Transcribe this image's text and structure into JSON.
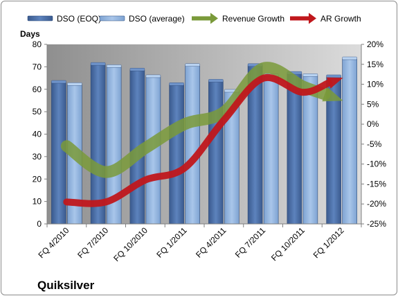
{
  "chart_data": {
    "type": "bar",
    "title": "Quiksilver",
    "ylabel": "Days",
    "ylim": [
      0,
      80
    ],
    "y2lim": [
      -25,
      20
    ],
    "yticks": [
      0,
      10,
      20,
      30,
      40,
      50,
      60,
      70,
      80
    ],
    "y2ticks": [
      "-25%",
      "-20%",
      "-15%",
      "-10%",
      "-5%",
      "0%",
      "5%",
      "10%",
      "15%",
      "20%"
    ],
    "y2tick_values": [
      -25,
      -20,
      -15,
      -10,
      -5,
      0,
      5,
      10,
      15,
      20
    ],
    "categories": [
      "FQ 4/2010",
      "FQ 7/2010",
      "FQ 10/2010",
      "FQ 1/2011",
      "FQ 4/2011",
      "FQ 7/2011",
      "FQ 10/2011",
      "FQ 1/2012"
    ],
    "legend_position": "top",
    "grid": false,
    "series": [
      {
        "name": "DSO (EOQ)",
        "kind": "bar",
        "axis": "left",
        "color": "#4a6fa8",
        "values": [
          63,
          71,
          68.5,
          62,
          63.5,
          70.5,
          67,
          65.5
        ]
      },
      {
        "name": "DSO (average)",
        "kind": "bar",
        "axis": "left",
        "color": "#8fb2dd",
        "values": [
          62,
          70,
          65.5,
          70.5,
          59,
          66,
          66,
          73.5
        ]
      },
      {
        "name": "Revenue Growth",
        "kind": "line-arrow",
        "axis": "right",
        "color": "#7a9a3a",
        "values": [
          -5.5,
          -12,
          -6,
          0,
          3,
          14,
          9.5,
          6
        ]
      },
      {
        "name": "AR Growth",
        "kind": "line-arrow",
        "axis": "right",
        "color": "#c0171c",
        "values": [
          -19.5,
          -19.5,
          -14,
          -11,
          1,
          11.5,
          8,
          11.5
        ]
      }
    ]
  }
}
